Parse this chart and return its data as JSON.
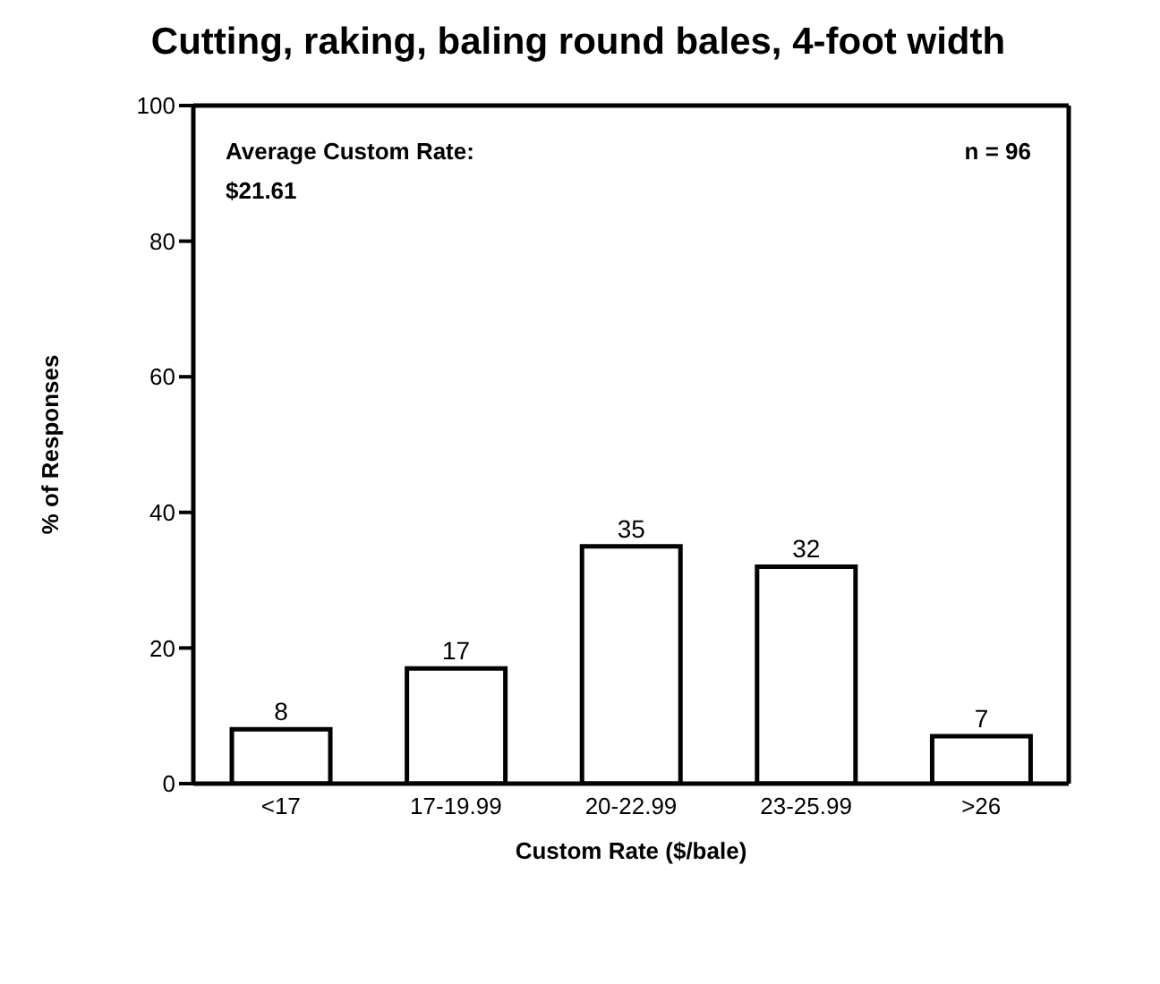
{
  "chart_data": {
    "type": "bar",
    "title": "Cutting, raking, baling round bales, 4-foot width",
    "xlabel": "Custom Rate ($/bale)",
    "ylabel": "% of Responses",
    "categories": [
      "<17",
      "17-19.99",
      "20-22.99",
      "23-25.99",
      ">26"
    ],
    "values": [
      8,
      17,
      35,
      32,
      7
    ],
    "color": "#ffffff",
    "ylim": [
      0,
      100
    ],
    "yticks": [
      0,
      20,
      40,
      60,
      80,
      100
    ],
    "data_labels": true,
    "annotations": [
      "Average Custom Rate: $21.61",
      "n = 96"
    ]
  }
}
